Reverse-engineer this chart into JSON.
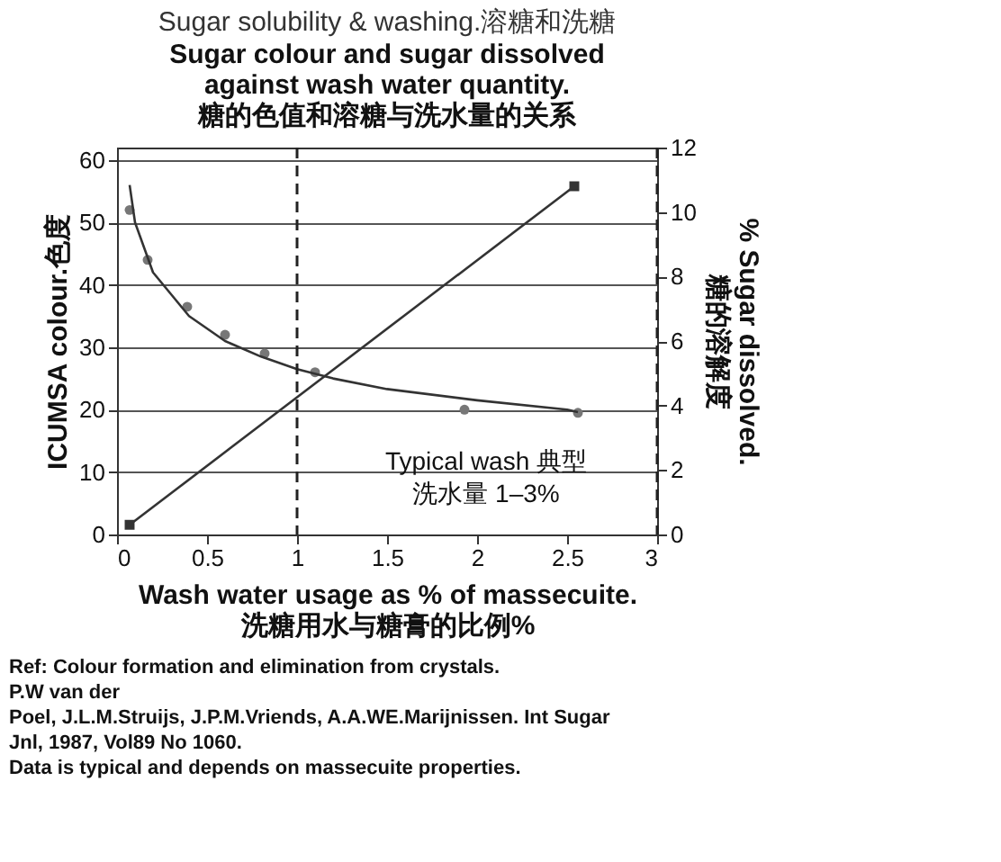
{
  "chart_data": {
    "type": "line",
    "title": "Sugar solubility & washing.溶糖和洗糖",
    "subtitle": "Sugar colour and sugar dissolved\nagainst wash water quantity.\n糖的色值和溶糖与洗水量的关系",
    "xlabel": "Wash water usage as % of massecuite.\n洗糖用水与糖膏的比例%",
    "ylabel": "ICUMSA colour.色度",
    "y2label": "% Sugar dissolved.\n糖的溶解度",
    "xlim": [
      0,
      3
    ],
    "xticks": [
      0,
      0.5,
      1,
      1.5,
      2,
      2.5,
      3
    ],
    "ylim": [
      0,
      62
    ],
    "yticks": [
      0,
      10,
      20,
      30,
      40,
      50,
      60
    ],
    "y2lim": [
      0,
      12
    ],
    "y2ticks": [
      0,
      2,
      4,
      6,
      8,
      10,
      12
    ],
    "grid": "y",
    "series": [
      {
        "type": "scatter",
        "marker": "circle",
        "color": "#777777",
        "x": [
          0.07,
          0.17,
          0.39,
          0.6,
          0.82,
          1.1,
          1.93,
          2.56
        ],
        "values": [
          52,
          44,
          36.5,
          32,
          29,
          26,
          20,
          19.5
        ]
      },
      {
        "marker": "none",
        "color": "#333333",
        "x": [
          0.07,
          0.1,
          0.2,
          0.4,
          0.6,
          0.8,
          1.0,
          1.2,
          1.5,
          2.0,
          2.5,
          2.56
        ],
        "values": [
          56,
          50,
          42,
          35,
          31,
          28.5,
          26.5,
          25,
          23.3,
          21.5,
          20,
          19.6
        ]
      },
      {
        "marker": "square",
        "axis": "y2",
        "color": "#333333",
        "x": [
          0.07,
          2.54
        ],
        "values": [
          0.3,
          10.8
        ]
      }
    ],
    "ref_lines": [
      {
        "axis": "x",
        "value": 1,
        "line_style": "dashed",
        "color": "#222222"
      },
      {
        "axis": "x",
        "value": 3,
        "line_style": "dashed",
        "color": "#222222"
      }
    ],
    "annotations": [
      "Typical wash   典型",
      "洗水量   1–3%",
      "Ref: Colour formation and elimination from crystals.",
      "P.W van der",
      "Poel, J.L.M.Struijs, J.P.M.Vriends, A.A.WE.Marijnissen. Int Sugar",
      "Jnl, 1987, Vol89 No 1060.",
      "Data is typical and depends on massecuite properties."
    ]
  }
}
